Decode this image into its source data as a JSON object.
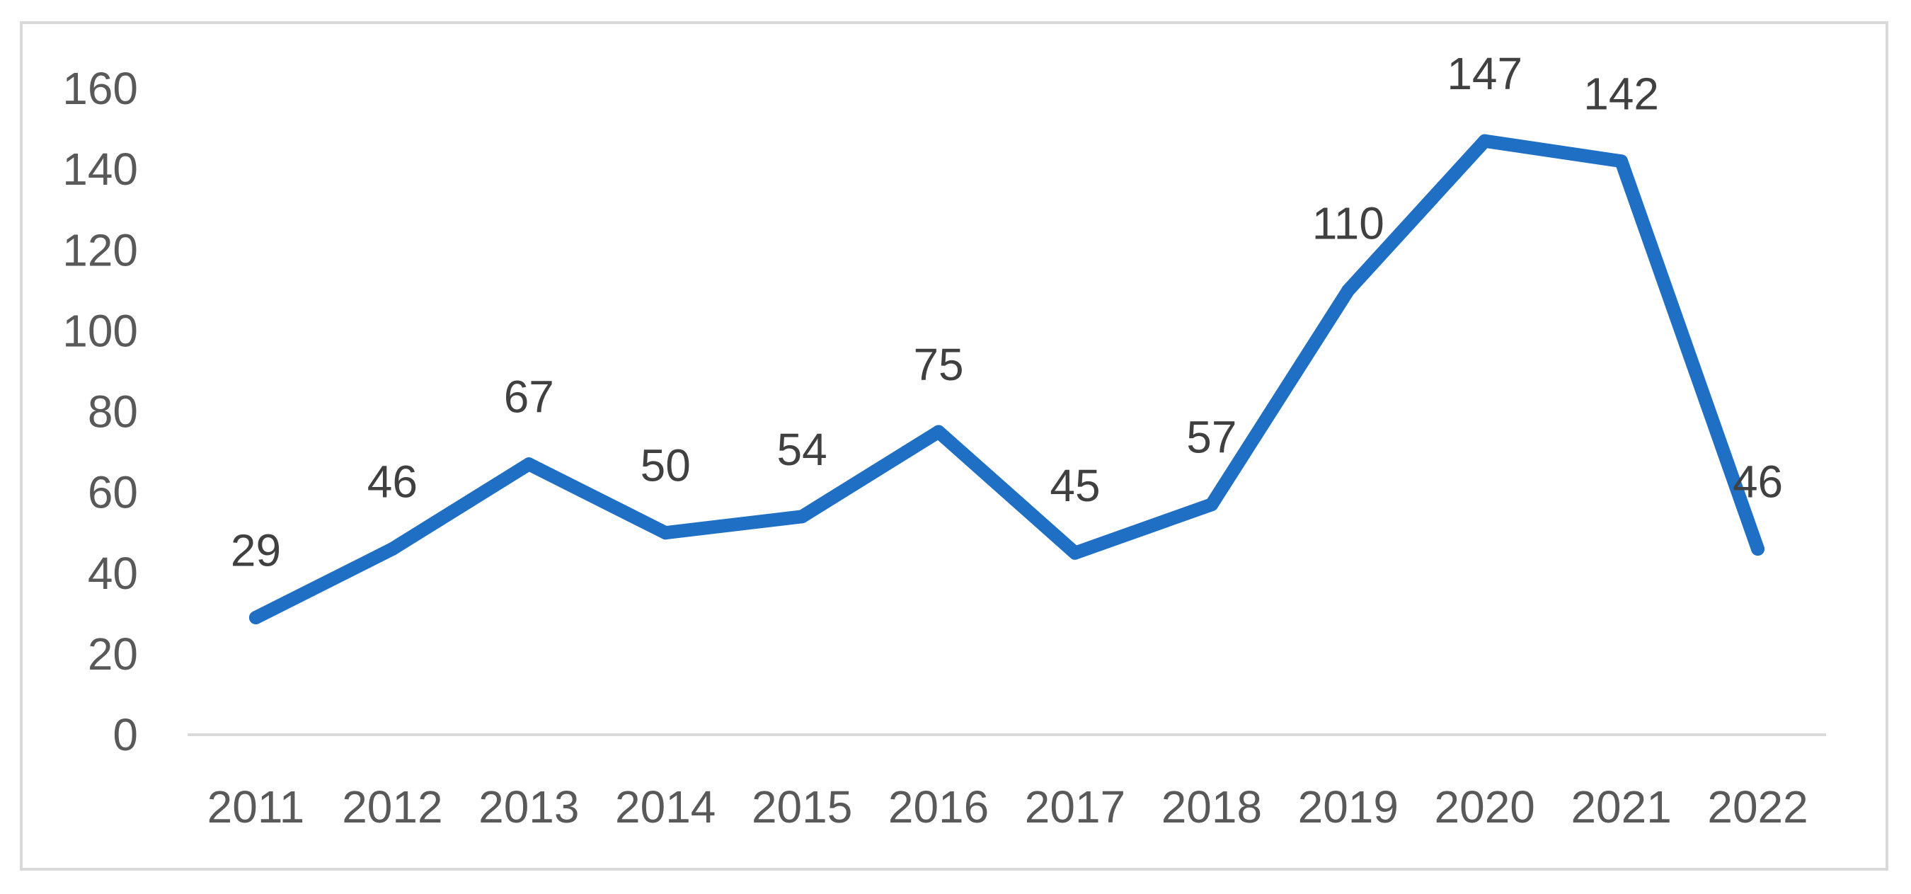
{
  "chart_data": {
    "type": "line",
    "title": "",
    "xlabel": "",
    "ylabel": "",
    "categories": [
      "2011",
      "2012",
      "2013",
      "2014",
      "2015",
      "2016",
      "2017",
      "2018",
      "2019",
      "2020",
      "2021",
      "2022"
    ],
    "series": [
      {
        "values": [
          29,
          46,
          67,
          50,
          54,
          75,
          45,
          57,
          110,
          147,
          142,
          46
        ],
        "color": "#1f6fc5",
        "data_labels": true
      }
    ],
    "ylim": [
      0,
      160
    ],
    "yticks": [
      0,
      20,
      40,
      60,
      80,
      100,
      120,
      140,
      160
    ],
    "grid": false,
    "legend": "none",
    "axis_color": "#d9d9d9"
  }
}
